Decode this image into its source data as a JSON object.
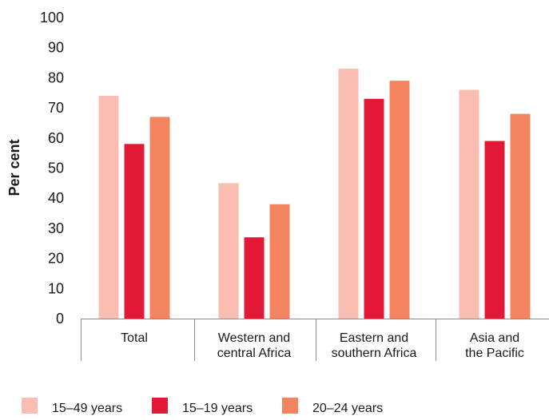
{
  "chart_data": {
    "type": "bar",
    "title": "",
    "xlabel": "",
    "ylabel": "Per cent",
    "ylim": [
      0,
      100
    ],
    "yticks": [
      0,
      10,
      20,
      30,
      40,
      50,
      60,
      70,
      80,
      90,
      100
    ],
    "grid": false,
    "legend_position": "bottom",
    "categories": [
      [
        "Total"
      ],
      [
        "Western and",
        "central Africa"
      ],
      [
        "Eastern and",
        "southern Africa"
      ],
      [
        "Asia and",
        "the Pacific"
      ]
    ],
    "series": [
      {
        "name": "15–49 years",
        "color": "#fbbdb1",
        "values": [
          74,
          45,
          83,
          76
        ]
      },
      {
        "name": "15–19 years",
        "color": "#e31837",
        "values": [
          58,
          27,
          73,
          59
        ]
      },
      {
        "name": "20–24 years",
        "color": "#f4845f",
        "values": [
          67,
          38,
          79,
          68
        ]
      }
    ]
  }
}
